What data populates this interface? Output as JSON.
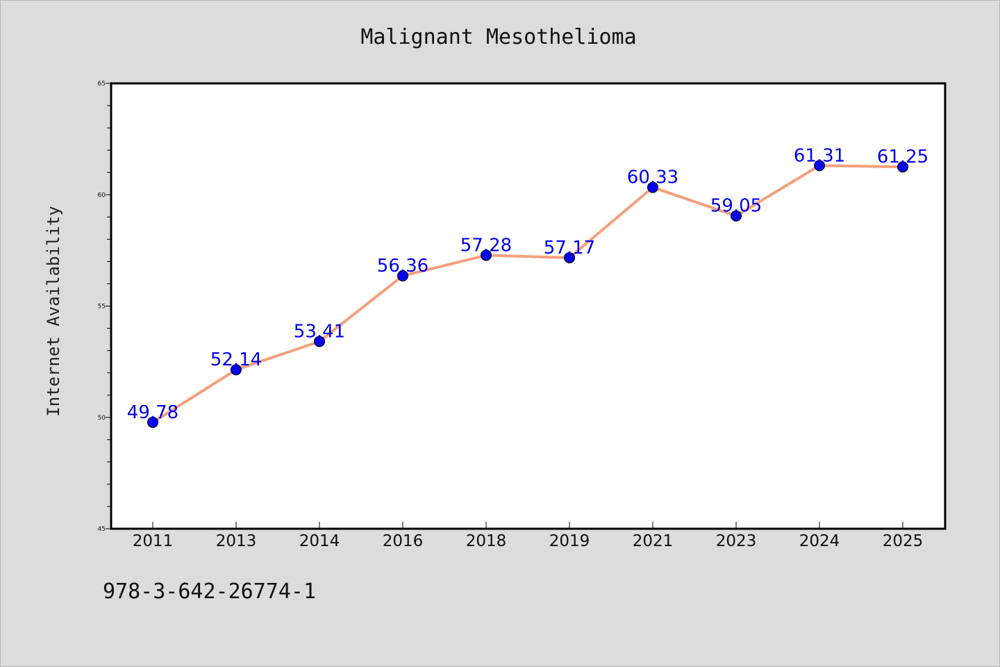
{
  "chart_data": {
    "type": "line",
    "title": "Malignant Mesothelioma",
    "xlabel": "",
    "ylabel": "Internet Availability",
    "categories": [
      "2011",
      "2013",
      "2014",
      "2016",
      "2018",
      "2019",
      "2021",
      "2023",
      "2024",
      "2025"
    ],
    "series": [
      {
        "values": [
          49.78,
          52.14,
          53.41,
          56.36,
          57.28,
          57.17,
          60.33,
          59.05,
          61.31,
          61.25
        ],
        "labels": [
          "49.78",
          "52.14",
          "53.41",
          "56.36",
          "57.28",
          "57.17",
          "60.33",
          "59.05",
          "61.31",
          "61.25"
        ]
      }
    ],
    "ylim": [
      45,
      65
    ],
    "yticks": [
      "45",
      "50",
      "55",
      "60",
      "65"
    ],
    "grid": false,
    "line_color": "#f4a07c",
    "marker_color": "#0000ee",
    "label_color": "#0000ee"
  },
  "footer": {
    "code": "978-3-642-26774-1"
  }
}
